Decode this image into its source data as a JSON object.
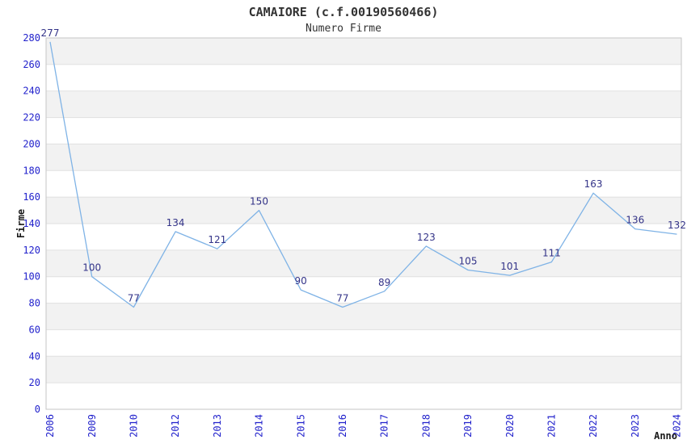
{
  "header": {
    "title": "CAMAIORE (c.f.00190560466)",
    "subtitle": "Numero Firme"
  },
  "chart_data": {
    "type": "line",
    "title": "CAMAIORE (c.f.00190560466)",
    "subtitle": "Numero Firme",
    "xlabel": "Anno",
    "ylabel": "Firme",
    "categories": [
      "2006",
      "2009",
      "2010",
      "2012",
      "2013",
      "2014",
      "2015",
      "2016",
      "2017",
      "2018",
      "2019",
      "2020",
      "2021",
      "2022",
      "2023",
      "2024"
    ],
    "values": [
      277,
      100,
      77,
      134,
      121,
      150,
      90,
      77,
      89,
      123,
      105,
      101,
      111,
      163,
      136,
      132
    ],
    "ylim": [
      0,
      280
    ],
    "ytick_step": 20,
    "ytick_labels": [
      "0",
      "20",
      "40",
      "60",
      "80",
      "100",
      "120",
      "140",
      "160",
      "180",
      "200",
      "220",
      "240",
      "260",
      "280"
    ],
    "grid": "alternating-horizontal-bands",
    "legend": "none",
    "point_labels_visible": true,
    "colors": {
      "line": "#7FB3E6",
      "tick_label": "#2222CC",
      "data_label": "#333388",
      "band_fill": "#F2F2F2",
      "grid_line": "#E0E0E0",
      "plot_border": "#C6C6C6",
      "title_text": "#333333",
      "axis_title_text": "#1A1A1A",
      "background": "#FFFFFF"
    }
  }
}
